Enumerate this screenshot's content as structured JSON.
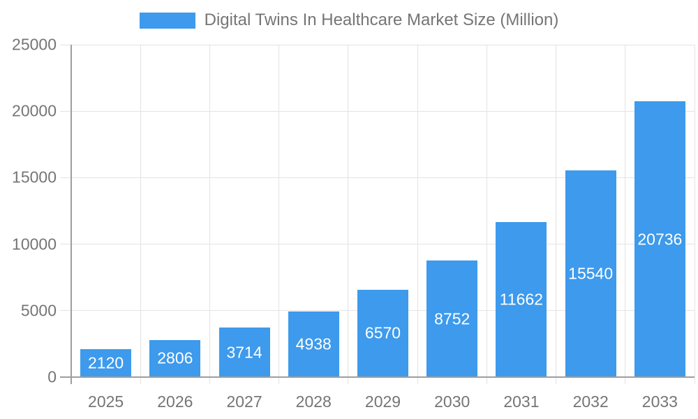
{
  "legend": {
    "label": "Digital Twins In Healthcare Market Size (Million)"
  },
  "chart_data": {
    "type": "bar",
    "title": "Digital Twins In Healthcare Market Size (Million)",
    "categories": [
      "2025",
      "2026",
      "2027",
      "2028",
      "2029",
      "2030",
      "2031",
      "2032",
      "2033"
    ],
    "values": [
      2120,
      2806,
      3714,
      4938,
      6570,
      8752,
      11662,
      15540,
      20736
    ],
    "series": [
      {
        "name": "Digital Twins In Healthcare Market Size (Million)",
        "values": [
          2120,
          2806,
          3714,
          4938,
          6570,
          8752,
          11662,
          15540,
          20736
        ]
      }
    ],
    "xlabel": "",
    "ylabel": "",
    "ylim": [
      0,
      25000
    ],
    "yticks": [
      0,
      5000,
      10000,
      15000,
      20000,
      25000
    ],
    "grid": true,
    "legend_position": "top",
    "bar_labels": "white, centered inside bars",
    "colors": {
      "bar": "#3d9aec",
      "bar_label_text": "#ffffff",
      "axis_text": "#757575",
      "grid_line": "#e3e3e3",
      "axis_line": "#9e9e9e",
      "background": "#ffffff"
    }
  }
}
